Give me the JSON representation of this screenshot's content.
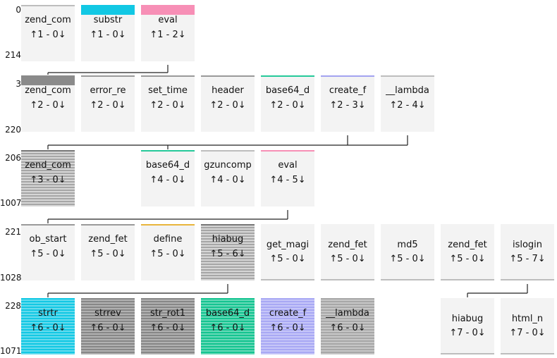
{
  "rows": [
    {
      "label_top": "0",
      "label_bottom": "214",
      "nodes": [
        {
          "col": 0,
          "name": "zend_com",
          "calls": "↑1 - 0↓",
          "style": "thin",
          "color": "#bdbdbd"
        },
        {
          "col": 1,
          "name": "substr",
          "calls": "↑1 - 0↓",
          "style": "band",
          "color": "#12c8e4"
        },
        {
          "col": 2,
          "name": "eval",
          "calls": "↑1 - 2↓",
          "style": "band",
          "color": "#f78fb6"
        }
      ]
    },
    {
      "label_top": "3",
      "label_bottom": "220",
      "nodes": [
        {
          "col": 0,
          "name": "zend_com",
          "calls": "↑2 - 0↓",
          "style": "band",
          "color": "#8a8a8a"
        },
        {
          "col": 1,
          "name": "error_re",
          "calls": "↑2 - 0↓",
          "style": "thin",
          "color": "#9a9a9a"
        },
        {
          "col": 2,
          "name": "set_time",
          "calls": "↑2 - 0↓",
          "style": "thin",
          "color": "#9a9a9a"
        },
        {
          "col": 3,
          "name": "header",
          "calls": "↑2 - 0↓",
          "style": "thin",
          "color": "#9a9a9a"
        },
        {
          "col": 4,
          "name": "base64_d",
          "calls": "↑2 - 0↓",
          "style": "thin",
          "color": "#26c99a"
        },
        {
          "col": 5,
          "name": "create_f",
          "calls": "↑2 - 3↓",
          "style": "thin",
          "color": "#a3a3f0"
        },
        {
          "col": 6,
          "name": "__lambda",
          "calls": "↑2 - 4↓",
          "style": "thin",
          "color": "#bdbdbd"
        }
      ]
    },
    {
      "label_top": "206",
      "label_bottom": "1007",
      "nodes": [
        {
          "col": 0,
          "name": "zend_com",
          "calls": "↑3 - 0↓",
          "style": "striped",
          "color": "#9a9a9a"
        },
        {
          "col": 2,
          "name": "base64_d",
          "calls": "↑4 - 0↓",
          "style": "thin",
          "color": "#26c99a"
        },
        {
          "col": 3,
          "name": "gzuncomp",
          "calls": "↑4 - 0↓",
          "style": "thin",
          "color": "#bdbdbd"
        },
        {
          "col": 4,
          "name": "eval",
          "calls": "↑4 - 5↓",
          "style": "thin",
          "color": "#f78fb6"
        }
      ]
    },
    {
      "label_top": "221",
      "label_bottom": "1028",
      "nodes": [
        {
          "col": 0,
          "name": "ob_start",
          "calls": "↑5 - 0↓",
          "style": "thin",
          "color": "#9a9a9a"
        },
        {
          "col": 1,
          "name": "zend_fet",
          "calls": "↑5 - 0↓",
          "style": "thin",
          "color": "#9a9a9a"
        },
        {
          "col": 2,
          "name": "define",
          "calls": "↑5 - 0↓",
          "style": "thin",
          "color": "#e8b53c"
        },
        {
          "col": 3,
          "name": "hiabug",
          "calls": "↑5 - 6↓",
          "style": "striped",
          "color": "#9a9a9a"
        },
        {
          "col": 4,
          "name": "get_magi",
          "calls": "↑5 - 0↓",
          "style": "full",
          "color": "#bdbdbd"
        },
        {
          "col": 5,
          "name": "zend_fet",
          "calls": "↑5 - 0↓",
          "style": "full",
          "color": "#bdbdbd"
        },
        {
          "col": 6,
          "name": "md5",
          "calls": "↑5 - 0↓",
          "style": "full",
          "color": "#bdbdbd"
        },
        {
          "col": 7,
          "name": "zend_fet",
          "calls": "↑5 - 0↓",
          "style": "full",
          "color": "#bdbdbd"
        },
        {
          "col": 8,
          "name": "islogin",
          "calls": "↑5 - 7↓",
          "style": "full",
          "color": "#bdbdbd"
        }
      ]
    },
    {
      "label_top": "228",
      "label_bottom": "1071",
      "nodes": [
        {
          "col": 0,
          "name": "strtr",
          "calls": "↑6 - 0↓",
          "style": "fullstripe",
          "color": "#12c8e4"
        },
        {
          "col": 1,
          "name": "strrev",
          "calls": "↑6 - 0↓",
          "style": "fullstripe",
          "color": "#878787"
        },
        {
          "col": 2,
          "name": "str_rot1",
          "calls": "↑6 - 0↓",
          "style": "fullstripe",
          "color": "#878787"
        },
        {
          "col": 3,
          "name": "base64_d",
          "calls": "↑6 - 0↓",
          "style": "fullstripe",
          "color": "#14c490"
        },
        {
          "col": 4,
          "name": "create_f",
          "calls": "↑6 - 0↓",
          "style": "fullstripe",
          "color": "#a8a8f4"
        },
        {
          "col": 5,
          "name": "__lambda",
          "calls": "↑6 - 0↓",
          "style": "fullstripe",
          "color": "#a7a7a7"
        },
        {
          "col": 7,
          "name": "hiabug",
          "calls": "↑7 - 0↓",
          "style": "full",
          "color": "#bdbdbd"
        },
        {
          "col": 8,
          "name": "html_n",
          "calls": "↑7 - 0↓",
          "style": "full",
          "color": "#bdbdbd"
        }
      ]
    }
  ],
  "links": [
    {
      "row": 0,
      "from": [
        2
      ],
      "to": [
        0
      ]
    },
    {
      "row": 1,
      "from": [
        5,
        6
      ],
      "to": [
        0,
        2
      ]
    },
    {
      "row": 2,
      "from": [
        4
      ],
      "to": [
        0
      ]
    },
    {
      "row": 3,
      "from": [
        3
      ],
      "to": [
        0
      ]
    },
    {
      "row": 3,
      "from": [
        8
      ],
      "to": [
        7
      ]
    }
  ]
}
